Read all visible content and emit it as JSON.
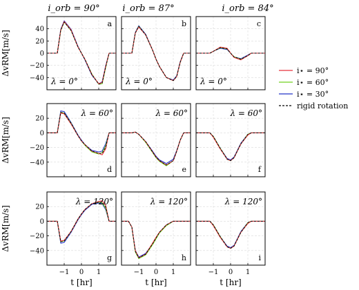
{
  "chart_data": {
    "type": "line",
    "x_range": [
      -2.0,
      2.0
    ],
    "x_ticks": [
      -1,
      0,
      1
    ],
    "xlabel": "t [hr]",
    "ylabel": "ΔvRM[m/s]",
    "column_titles": [
      "i_orb = 90°",
      "i_orb = 87°",
      "i_orb = 84°"
    ],
    "row_ylims": [
      [
        -60,
        60
      ],
      [
        -60,
        40
      ],
      [
        -60,
        40
      ]
    ],
    "row_yticks": [
      [
        -40,
        -20,
        0,
        20,
        40
      ],
      [
        -40,
        -20,
        0,
        20
      ],
      [
        -40,
        -20,
        0,
        20
      ]
    ],
    "legend": {
      "placement": "right",
      "entries": [
        {
          "label": "i⋆ = 90°",
          "color": "#e8323c",
          "dash": "solid"
        },
        {
          "label": "i⋆ = 60°",
          "color": "#6fd11e",
          "dash": "solid"
        },
        {
          "label": "i⋆ = 30°",
          "color": "#2233c8",
          "dash": "solid"
        },
        {
          "label": "rigid rotation",
          "color": "#000000",
          "dash": "dashed"
        }
      ]
    },
    "series_x": [
      -2.0,
      -1.6,
      -1.4,
      -1.2,
      -1.0,
      -0.6,
      -0.2,
      0.0,
      0.2,
      0.6,
      1.0,
      1.2,
      1.4,
      1.6,
      2.0
    ],
    "panels": [
      {
        "letter": "a",
        "lambda": "λ = 0°",
        "row": 0,
        "col": 0,
        "series": [
          {
            "values": [
              0,
              0,
              0,
              38,
              52,
              38,
              10,
              0,
              -10,
              -35,
              -50,
              -48,
              -22,
              0,
              0
            ]
          },
          {
            "values": [
              0,
              0,
              0,
              37,
              51,
              37,
              10,
              0,
              -10,
              -34,
              -51,
              -50,
              -24,
              0,
              0
            ]
          },
          {
            "values": [
              0,
              0,
              0,
              39,
              53,
              39,
              11,
              0,
              -11,
              -36,
              -50,
              -47,
              -21,
              0,
              0
            ]
          },
          {
            "values": [
              0,
              0,
              0,
              38,
              51,
              37,
              10,
              0,
              -10,
              -35,
              -51,
              -49,
              -23,
              0,
              0
            ]
          }
        ]
      },
      {
        "letter": "b",
        "lambda": "λ = 0°",
        "row": 0,
        "col": 1,
        "series": [
          {
            "values": [
              0,
              0,
              0,
              33,
              43,
              30,
              5,
              -10,
              -22,
              -40,
              -45,
              -38,
              -15,
              0,
              0
            ]
          },
          {
            "values": [
              0,
              0,
              0,
              33,
              44,
              30,
              5,
              -10,
              -22,
              -40,
              -45,
              -38,
              -15,
              0,
              0
            ]
          },
          {
            "values": [
              0,
              0,
              0,
              34,
              45,
              31,
              5,
              -10,
              -22,
              -40,
              -44,
              -37,
              -14,
              0,
              0
            ]
          },
          {
            "values": [
              0,
              0,
              0,
              33,
              44,
              30,
              5,
              -10,
              -22,
              -40,
              -45,
              -38,
              -15,
              0,
              0
            ]
          }
        ]
      },
      {
        "letter": "c",
        "lambda": "λ = 0°",
        "row": 0,
        "col": 2,
        "series": [
          {
            "values": [
              0,
              0,
              0,
              0,
              3,
              10,
              8,
              0,
              -7,
              -11,
              -4,
              0,
              0,
              0,
              0
            ]
          },
          {
            "values": [
              0,
              0,
              0,
              0,
              3,
              9,
              7,
              0,
              -6,
              -10,
              -4,
              0,
              0,
              0,
              0
            ]
          },
          {
            "values": [
              0,
              0,
              0,
              0,
              3,
              8,
              6,
              0,
              -6,
              -9,
              -3,
              0,
              0,
              0,
              0
            ]
          },
          {
            "values": [
              0,
              0,
              0,
              0,
              3,
              9,
              7,
              0,
              -6,
              -10,
              -4,
              0,
              0,
              0,
              0
            ]
          }
        ]
      },
      {
        "letter": "d",
        "lambda": "λ = 60°",
        "row": 1,
        "col": 0,
        "series": [
          {
            "values": [
              0,
              0,
              0,
              27,
              26,
              12,
              -4,
              -11,
              -16,
              -25,
              -28,
              -30,
              -22,
              0,
              0
            ]
          },
          {
            "values": [
              0,
              0,
              0,
              28,
              27,
              13,
              -4,
              -11,
              -17,
              -26,
              -29,
              -27,
              -18,
              0,
              0
            ]
          },
          {
            "values": [
              0,
              0,
              0,
              30,
              29,
              14,
              -3,
              -10,
              -16,
              -24,
              -26,
              -25,
              -15,
              0,
              0
            ]
          },
          {
            "values": [
              0,
              0,
              0,
              28,
              27,
              13,
              -4,
              -11,
              -16,
              -25,
              -28,
              -28,
              -20,
              0,
              0
            ]
          }
        ]
      },
      {
        "letter": "e",
        "lambda": "λ = 60°",
        "row": 1,
        "col": 1,
        "series": [
          {
            "values": [
              0,
              0,
              0,
              1,
              -2,
              -12,
              -26,
              -33,
              -38,
              -44,
              -38,
              -25,
              -10,
              0,
              0
            ]
          },
          {
            "values": [
              0,
              0,
              0,
              1,
              -2,
              -13,
              -27,
              -34,
              -39,
              -45,
              -38,
              -25,
              -10,
              0,
              0
            ]
          },
          {
            "values": [
              0,
              0,
              0,
              1,
              -2,
              -12,
              -25,
              -32,
              -37,
              -42,
              -36,
              -24,
              -10,
              0,
              0
            ]
          },
          {
            "values": [
              0,
              0,
              0,
              1,
              -2,
              -12,
              -26,
              -33,
              -38,
              -44,
              -38,
              -25,
              -10,
              0,
              0
            ]
          }
        ]
      },
      {
        "letter": "f",
        "lambda": "λ = 60°",
        "row": 1,
        "col": 2,
        "series": [
          {
            "values": [
              0,
              0,
              0,
              0,
              -6,
              -22,
              -36,
              -38,
              -34,
              -15,
              -3,
              0,
              0,
              0,
              0
            ]
          },
          {
            "values": [
              0,
              0,
              0,
              0,
              -5,
              -21,
              -36,
              -38,
              -34,
              -15,
              -2,
              0,
              0,
              0,
              0
            ]
          },
          {
            "values": [
              0,
              0,
              0,
              0,
              -5,
              -21,
              -35,
              -37,
              -33,
              -14,
              -2,
              0,
              0,
              0,
              0
            ]
          },
          {
            "values": [
              0,
              0,
              0,
              0,
              -5,
              -21,
              -36,
              -38,
              -34,
              -15,
              -2,
              0,
              0,
              0,
              0
            ]
          }
        ]
      },
      {
        "letter": "g",
        "lambda": "λ = 120°",
        "row": 2,
        "col": 0,
        "series": [
          {
            "values": [
              0,
              0,
              0,
              -27,
              -26,
              -14,
              3,
              10,
              16,
              24,
              27,
              28,
              22,
              0,
              0
            ]
          },
          {
            "values": [
              0,
              0,
              0,
              -28,
              -27,
              -14,
              3,
              10,
              16,
              24,
              26,
              25,
              18,
              0,
              0
            ]
          },
          {
            "values": [
              0,
              0,
              0,
              -30,
              -29,
              -15,
              2,
              9,
              15,
              23,
              25,
              24,
              16,
              0,
              0
            ]
          },
          {
            "values": [
              0,
              0,
              0,
              -28,
              -27,
              -14,
              3,
              10,
              16,
              24,
              26,
              26,
              20,
              0,
              0
            ]
          }
        ]
      },
      {
        "letter": "h",
        "lambda": "λ = 120°",
        "row": 2,
        "col": 1,
        "series": [
          {
            "values": [
              0,
              0,
              -8,
              -40,
              -50,
              -45,
              -30,
              -22,
              -15,
              -5,
              0,
              0,
              0,
              0,
              0
            ]
          },
          {
            "values": [
              0,
              0,
              -8,
              -42,
              -51,
              -46,
              -32,
              -24,
              -16,
              -6,
              0,
              0,
              0,
              0,
              0
            ]
          },
          {
            "values": [
              0,
              0,
              -8,
              -40,
              -49,
              -44,
              -31,
              -23,
              -15,
              -5,
              0,
              0,
              0,
              0,
              0
            ]
          },
          {
            "values": [
              0,
              0,
              -8,
              -41,
              -50,
              -45,
              -31,
              -23,
              -15,
              -5,
              0,
              0,
              0,
              0,
              0
            ]
          }
        ]
      },
      {
        "letter": "i",
        "lambda": "λ = 120°",
        "row": 2,
        "col": 2,
        "series": [
          {
            "values": [
              0,
              0,
              0,
              0,
              -6,
              -22,
              -35,
              -37,
              -34,
              -15,
              -3,
              0,
              0,
              0,
              0
            ]
          },
          {
            "values": [
              0,
              0,
              0,
              0,
              -5,
              -21,
              -35,
              -37,
              -34,
              -15,
              -2,
              0,
              0,
              0,
              0
            ]
          },
          {
            "values": [
              0,
              0,
              0,
              0,
              -5,
              -21,
              -34,
              -36,
              -33,
              -14,
              -2,
              0,
              0,
              0,
              0
            ]
          },
          {
            "values": [
              0,
              0,
              0,
              0,
              -5,
              -21,
              -35,
              -37,
              -34,
              -15,
              -2,
              0,
              0,
              0,
              0
            ]
          }
        ]
      }
    ]
  }
}
